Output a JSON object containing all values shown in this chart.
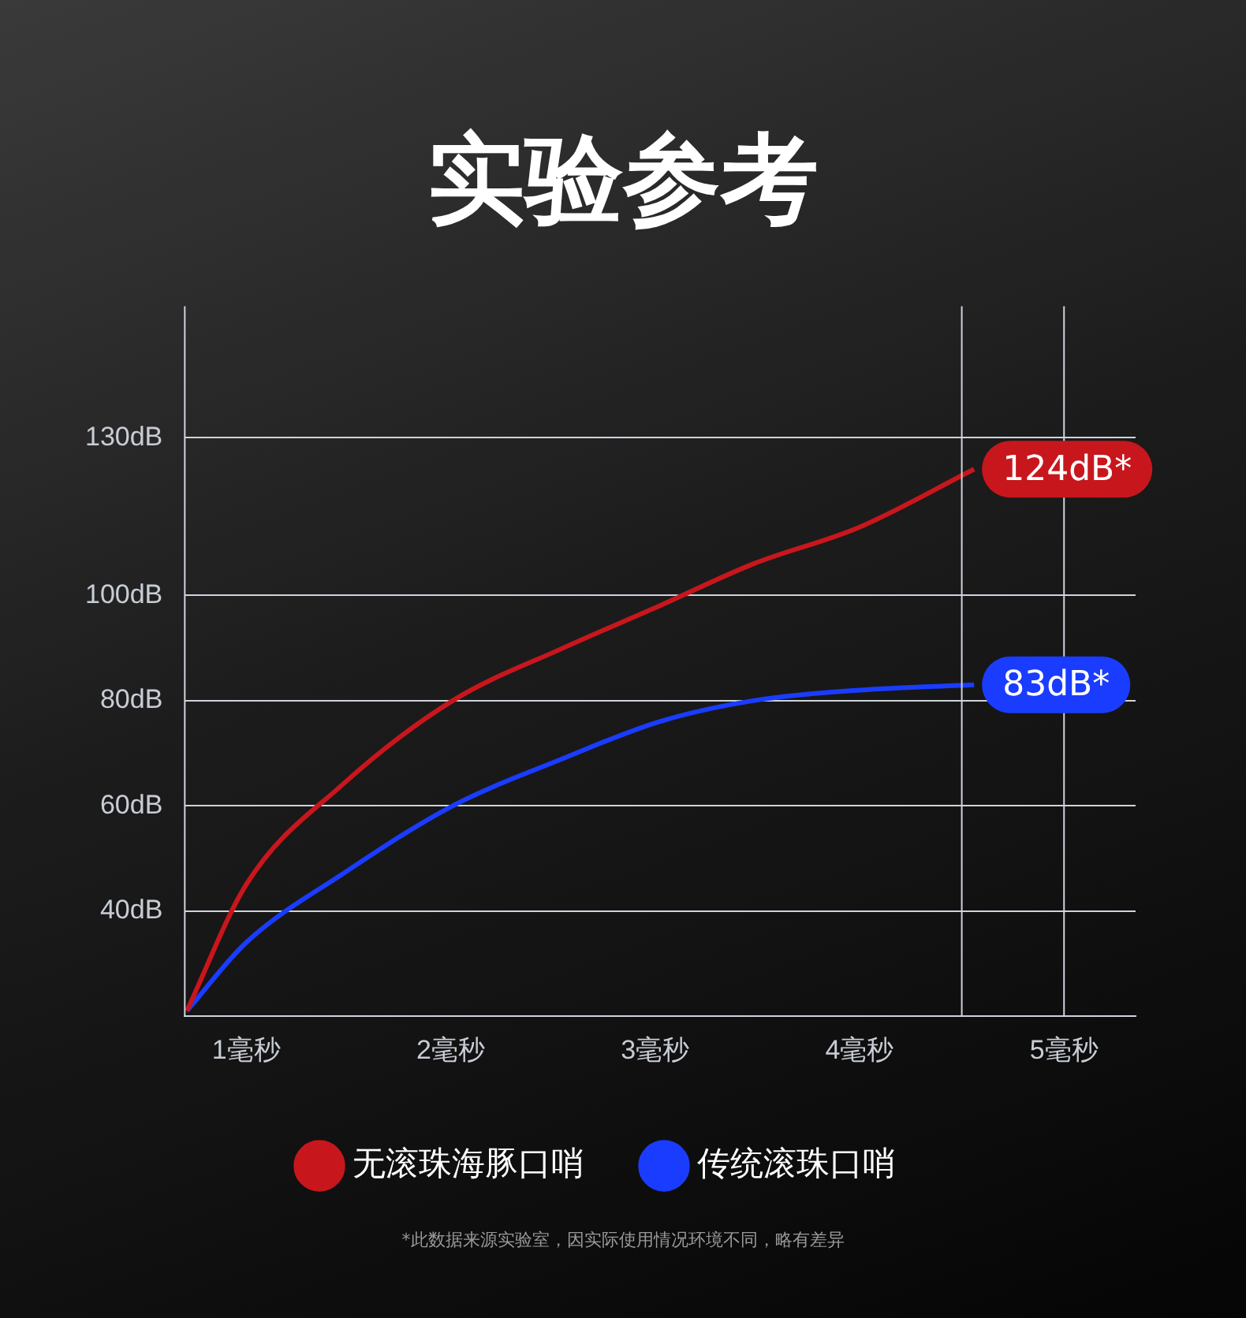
{
  "chart_data": {
    "type": "line",
    "title": "实验参考",
    "x": [
      0.71,
      1,
      1.47,
      2.01,
      2.55,
      3.02,
      3.48,
      4.0,
      4.56
    ],
    "xlim": [
      0.7,
      5.35
    ],
    "xticks": [
      {
        "value": 1,
        "label": "1毫秒"
      },
      {
        "value": 2,
        "label": "2毫秒"
      },
      {
        "value": 3,
        "label": "3毫秒"
      },
      {
        "value": 4,
        "label": "4毫秒"
      },
      {
        "value": 5,
        "label": "5毫秒"
      }
    ],
    "ylim": [
      20,
      155
    ],
    "yticks": [
      {
        "value": 40,
        "label": "40dB"
      },
      {
        "value": 60,
        "label": "60dB"
      },
      {
        "value": 80,
        "label": "80dB"
      },
      {
        "value": 100,
        "label": "100dB"
      },
      {
        "value": 130,
        "label": "130dB"
      }
    ],
    "series": [
      {
        "name": "无滚珠海豚口哨",
        "color": "#c8161d",
        "values": [
          21,
          45,
          64,
          80,
          90,
          98,
          106,
          113,
          124
        ]
      },
      {
        "name": "传统滚珠口哨",
        "color": "#1a3cff",
        "values": [
          21,
          34,
          47,
          60,
          69,
          76,
          80,
          82,
          83
        ]
      }
    ],
    "ref_lines": [
      {
        "axis": "x",
        "value": 4.5
      },
      {
        "axis": "x",
        "value": 5
      }
    ],
    "annotations": [
      {
        "text": "124dB*",
        "x": 4.56,
        "y": 124
      },
      {
        "text": "83dB*",
        "x": 4.56,
        "y": 83
      },
      "*此数据来源实验室，因实际使用情况环境不同，略有差异"
    ],
    "grid": "y",
    "legend": "bottom",
    "marker": "none",
    "line_style": "solid"
  }
}
